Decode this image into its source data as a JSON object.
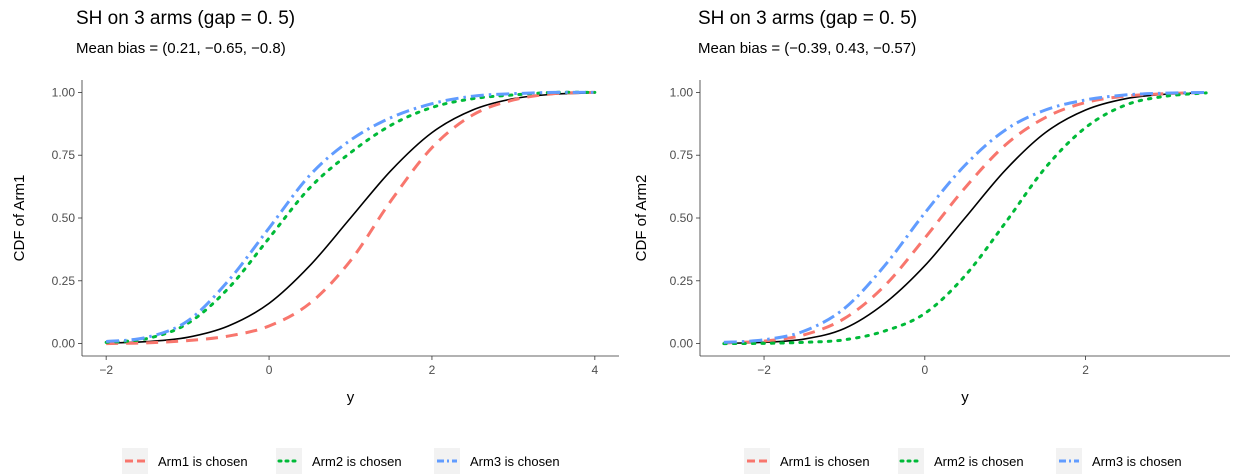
{
  "chart_data": [
    {
      "type": "line",
      "title": "SH on 3 arms (gap = 0. 5)",
      "subtitle": "Mean bias = (0.21, −0.65, −0.8)",
      "xlabel": "y",
      "ylabel": "CDF of Arm1",
      "xlim": [
        -2,
        4
      ],
      "ylim": [
        0,
        1
      ],
      "xticks": [
        -2,
        0,
        2,
        4
      ],
      "xtick_labels": [
        "−2",
        "0",
        "2",
        "4"
      ],
      "yticks": [
        0,
        0.25,
        0.5,
        0.75,
        1
      ],
      "ytick_labels": [
        "0.00",
        "0.25",
        "0.50",
        "0.75",
        "1.00"
      ],
      "grid": false,
      "legend_position": "bottom",
      "series": [
        {
          "name": "Arm1 is chosen",
          "color": "#F8766D",
          "dash": "dashed",
          "x": [
            -2,
            -1.5,
            -1,
            -0.5,
            0,
            0.5,
            1,
            1.5,
            2,
            2.5,
            3,
            3.5,
            4
          ],
          "y": [
            0.0,
            0.003,
            0.012,
            0.03,
            0.07,
            0.16,
            0.33,
            0.57,
            0.78,
            0.91,
            0.97,
            0.995,
            1.0
          ]
        },
        {
          "name": "Arm2 is chosen",
          "color": "#00BA38",
          "dash": "dotted",
          "x": [
            -2,
            -1.5,
            -1,
            -0.5,
            0,
            0.5,
            1,
            1.5,
            2,
            2.5,
            3,
            3.5,
            4
          ],
          "y": [
            0.005,
            0.02,
            0.08,
            0.22,
            0.42,
            0.62,
            0.76,
            0.87,
            0.94,
            0.975,
            0.99,
            1.0,
            1.0
          ]
        },
        {
          "name": "Arm3 is chosen",
          "color": "#619CFF",
          "dash": "dotdash",
          "x": [
            -2,
            -1.5,
            -1,
            -0.5,
            0,
            0.5,
            1,
            1.5,
            2,
            2.5,
            3,
            3.5,
            4
          ],
          "y": [
            0.008,
            0.025,
            0.09,
            0.25,
            0.46,
            0.67,
            0.81,
            0.9,
            0.955,
            0.985,
            0.995,
            1.0,
            1.0
          ]
        },
        {
          "name": "",
          "color": "#000000",
          "dash": "solid",
          "x": [
            -2,
            -1.5,
            -1,
            -0.5,
            0,
            0.5,
            1,
            1.5,
            2,
            2.5,
            3,
            3.5,
            4
          ],
          "y": [
            0.002,
            0.008,
            0.025,
            0.07,
            0.16,
            0.31,
            0.5,
            0.69,
            0.84,
            0.93,
            0.975,
            0.993,
            0.998
          ]
        }
      ]
    },
    {
      "type": "line",
      "title": "SH on 3 arms (gap = 0. 5)",
      "subtitle": "Mean bias = (−0.39, 0.43, −0.57)",
      "xlabel": "y",
      "ylabel": "CDF of Arm2",
      "xlim": [
        -2.5,
        3.5
      ],
      "ylim": [
        0,
        1
      ],
      "xticks": [
        -2,
        0,
        2
      ],
      "xtick_labels": [
        "−2",
        "0",
        "2"
      ],
      "yticks": [
        0,
        0.25,
        0.5,
        0.75,
        1
      ],
      "ytick_labels": [
        "0.00",
        "0.25",
        "0.50",
        "0.75",
        "1.00"
      ],
      "grid": false,
      "legend_position": "bottom",
      "series": [
        {
          "name": "Arm1 is chosen",
          "color": "#F8766D",
          "dash": "dashed",
          "x": [
            -2.5,
            -2,
            -1.5,
            -1,
            -0.5,
            0,
            0.5,
            1,
            1.5,
            2,
            2.5,
            3,
            3.5
          ],
          "y": [
            0.003,
            0.01,
            0.035,
            0.1,
            0.23,
            0.42,
            0.62,
            0.79,
            0.9,
            0.96,
            0.985,
            0.995,
            1.0
          ]
        },
        {
          "name": "Arm2 is chosen",
          "color": "#00BA38",
          "dash": "dotted",
          "x": [
            -2.5,
            -2,
            -1.5,
            -1,
            -0.5,
            0,
            0.5,
            1,
            1.5,
            2,
            2.5,
            3,
            3.5
          ],
          "y": [
            0.0,
            0.001,
            0.005,
            0.015,
            0.05,
            0.12,
            0.27,
            0.48,
            0.7,
            0.86,
            0.95,
            0.985,
            0.998
          ]
        },
        {
          "name": "Arm3 is chosen",
          "color": "#619CFF",
          "dash": "dotdash",
          "x": [
            -2.5,
            -2,
            -1.5,
            -1,
            -0.5,
            0,
            0.5,
            1,
            1.5,
            2,
            2.5,
            3,
            3.5
          ],
          "y": [
            0.005,
            0.015,
            0.05,
            0.14,
            0.31,
            0.52,
            0.71,
            0.85,
            0.93,
            0.97,
            0.99,
            0.997,
            1.0
          ]
        },
        {
          "name": "",
          "color": "#000000",
          "dash": "solid",
          "x": [
            -2.5,
            -2,
            -1.5,
            -1,
            -0.5,
            0,
            0.5,
            1,
            1.5,
            2,
            2.5,
            3,
            3.5
          ],
          "y": [
            0.001,
            0.005,
            0.018,
            0.06,
            0.16,
            0.31,
            0.5,
            0.69,
            0.84,
            0.93,
            0.975,
            0.993,
            0.998
          ]
        }
      ]
    }
  ]
}
